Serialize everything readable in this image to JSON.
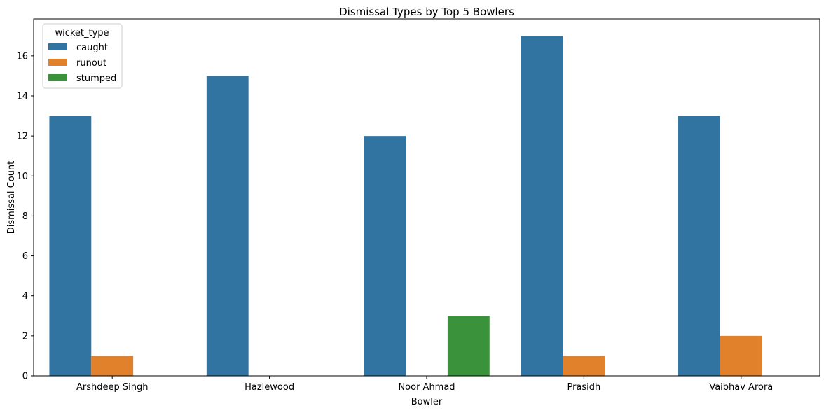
{
  "chart_data": {
    "type": "bar",
    "title": "Dismissal Types by Top 5 Bowlers",
    "xlabel": "Bowler",
    "ylabel": "Dismissal Count",
    "categories": [
      "Arshdeep Singh",
      "Hazlewood",
      "Noor Ahmad",
      "Prasidh",
      "Vaibhav Arora"
    ],
    "series": [
      {
        "name": "caught",
        "color": "#3274a1",
        "values": [
          13,
          15,
          12,
          17,
          13
        ]
      },
      {
        "name": "runout",
        "color": "#e1812c",
        "values": [
          1,
          null,
          null,
          1,
          2
        ]
      },
      {
        "name": "stumped",
        "color": "#3a923a",
        "values": [
          null,
          null,
          3,
          null,
          null
        ]
      }
    ],
    "ylim": [
      0,
      17.85
    ],
    "yticks": [
      0,
      2,
      4,
      6,
      8,
      10,
      12,
      14,
      16
    ],
    "grid": false,
    "legend": {
      "title": "wicket_type",
      "placement": "top-left"
    }
  }
}
